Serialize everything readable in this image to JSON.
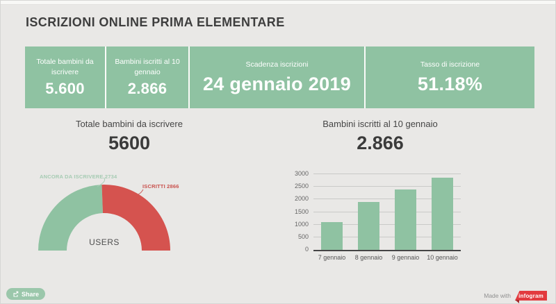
{
  "header": {
    "title": "ISCRIZIONI ONLINE PRIMA ELEMENTARE"
  },
  "stat_bar": {
    "segments": [
      {
        "label": "Totale bambini da iscrivere",
        "value": "5.600"
      },
      {
        "label": "Bambini iscritti al 10 gennaio",
        "value": "2.866"
      },
      {
        "label": "Scadenza iscrizioni",
        "value": "24 gennaio 2019"
      },
      {
        "label": "Tasso di iscrizione",
        "value": "51.18%"
      }
    ]
  },
  "sections": {
    "gauge": {
      "title": "Totale bambini da iscrivere",
      "value": "5600"
    },
    "bars": {
      "title": "Bambini iscritti al 10 gennaio",
      "value": "2.866"
    }
  },
  "chart_data": [
    {
      "type": "pie",
      "subtype": "semicircle-donut-gauge",
      "total": 5600,
      "center_label": "USERS",
      "slices": [
        {
          "label": "ANCORA DA ISCRIVERE",
          "value": 2734,
          "color": "#8fc2a2"
        },
        {
          "label": "ISCRITTI",
          "value": 2866,
          "color": "#d5534f"
        }
      ],
      "callouts": [
        {
          "text": "ANCORA DA ISCRIVERE 2734",
          "color": "#a6cbb3"
        },
        {
          "text": "ISCRITTI 2866",
          "color": "#c9514d"
        }
      ]
    },
    {
      "type": "bar",
      "categories": [
        "7 gennaio",
        "8 gennaio",
        "9 gennaio",
        "10 gennaio"
      ],
      "values": [
        1100,
        1900,
        2400,
        2866
      ],
      "ylim": [
        0,
        3000
      ],
      "ytick_step": 500,
      "bar_color": "#8fc2a2",
      "grid": true,
      "legend_position": "none",
      "title": "",
      "xlabel": "",
      "ylabel": ""
    }
  ],
  "footer": {
    "share_label": "Share",
    "made_with_label": "Made with",
    "brand_label": "infogram",
    "brand_color": "#e23a3e"
  },
  "colors": {
    "green": "#8fc2a2",
    "red": "#d5534f",
    "background": "#e9e8e6"
  }
}
